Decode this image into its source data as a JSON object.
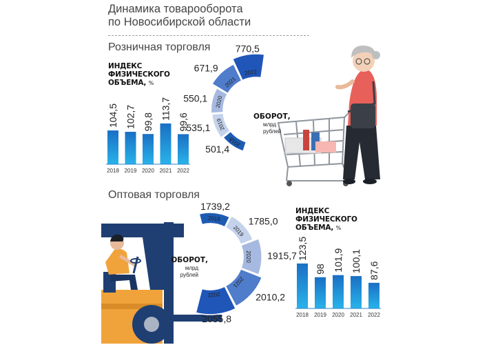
{
  "title_line1": "Динамика товарооборота",
  "title_line2": "по Новосибирской области",
  "retail": {
    "section_title": "Розничная торговля",
    "index_title_line1": "ИНДЕКС",
    "index_title_line2": "ФИЗИЧЕСКОГО",
    "index_title_line3": "ОБЪЕМА,",
    "index_unit": "%",
    "turnover_label": "ОБОРОТ,",
    "turnover_unit_line1": "млрд",
    "turnover_unit_line2": "рублей"
  },
  "wholesale": {
    "section_title": "Оптовая торговля",
    "index_title_line1": "ИНДЕКС",
    "index_title_line2": "ФИЗИЧЕСКОГО",
    "index_title_line3": "ОБЪЕМА,",
    "index_unit": "%",
    "turnover_label": "ОБОРОТ,",
    "turnover_unit_line1": "млрд",
    "turnover_unit_line2": "рублей"
  },
  "colors": {
    "bar_gradient_top": "#1a6fc4",
    "bar_gradient_bottom": "#29b3ea",
    "donut_2018": "#1e5cb3",
    "donut_2019": "#c4d2ec",
    "donut_2020": "#a6b9e0",
    "donut_2021": "#4f7ccb",
    "donut_2022": "#1f56b8",
    "basket_pink": "#f7b6b1",
    "forklift_blue": "#1f3f73",
    "forklift_orange": "#f0a33b"
  },
  "chart_data": [
    {
      "type": "bar",
      "id": "retail-index",
      "categories": [
        "2018",
        "2019",
        "2020",
        "2021",
        "2022"
      ],
      "values": [
        104.5,
        102.7,
        99.8,
        113.7,
        99.6
      ],
      "value_labels": [
        "104,5",
        "102,7",
        "99,8",
        "113,7",
        "99,6"
      ],
      "title": "ИНДЕКС ФИЗИЧЕСКОГО ОБЪЕМА, %"
    },
    {
      "type": "pie",
      "id": "retail-turnover",
      "categories": [
        "2018",
        "2019",
        "2020",
        "2021",
        "2022"
      ],
      "values": [
        501.4,
        535.1,
        550.1,
        671.9,
        770.5
      ],
      "value_labels": [
        "501,4",
        "535,1",
        "550,1",
        "671,9",
        "770,5"
      ],
      "title": "ОБОРОТ, млрд рублей"
    },
    {
      "type": "pie",
      "id": "wholesale-turnover",
      "categories": [
        "2018",
        "2019",
        "2020",
        "2021",
        "2022"
      ],
      "values": [
        1739.2,
        1785.0,
        1915.7,
        2010.2,
        2055.8
      ],
      "value_labels": [
        "1739,2",
        "1785,0",
        "1915,7",
        "2010,2",
        "2055,8"
      ],
      "title": "ОБОРОТ, млрд рублей"
    },
    {
      "type": "bar",
      "id": "wholesale-index",
      "categories": [
        "2018",
        "2019",
        "2020",
        "2021",
        "2022"
      ],
      "values": [
        123.5,
        98,
        101.9,
        100.1,
        87.6
      ],
      "value_labels": [
        "123,5",
        "98",
        "101,9",
        "100,1",
        "87,6"
      ],
      "title": "ИНДЕКС ФИЗИЧЕСКОГО ОБЪЕМА, %"
    }
  ]
}
